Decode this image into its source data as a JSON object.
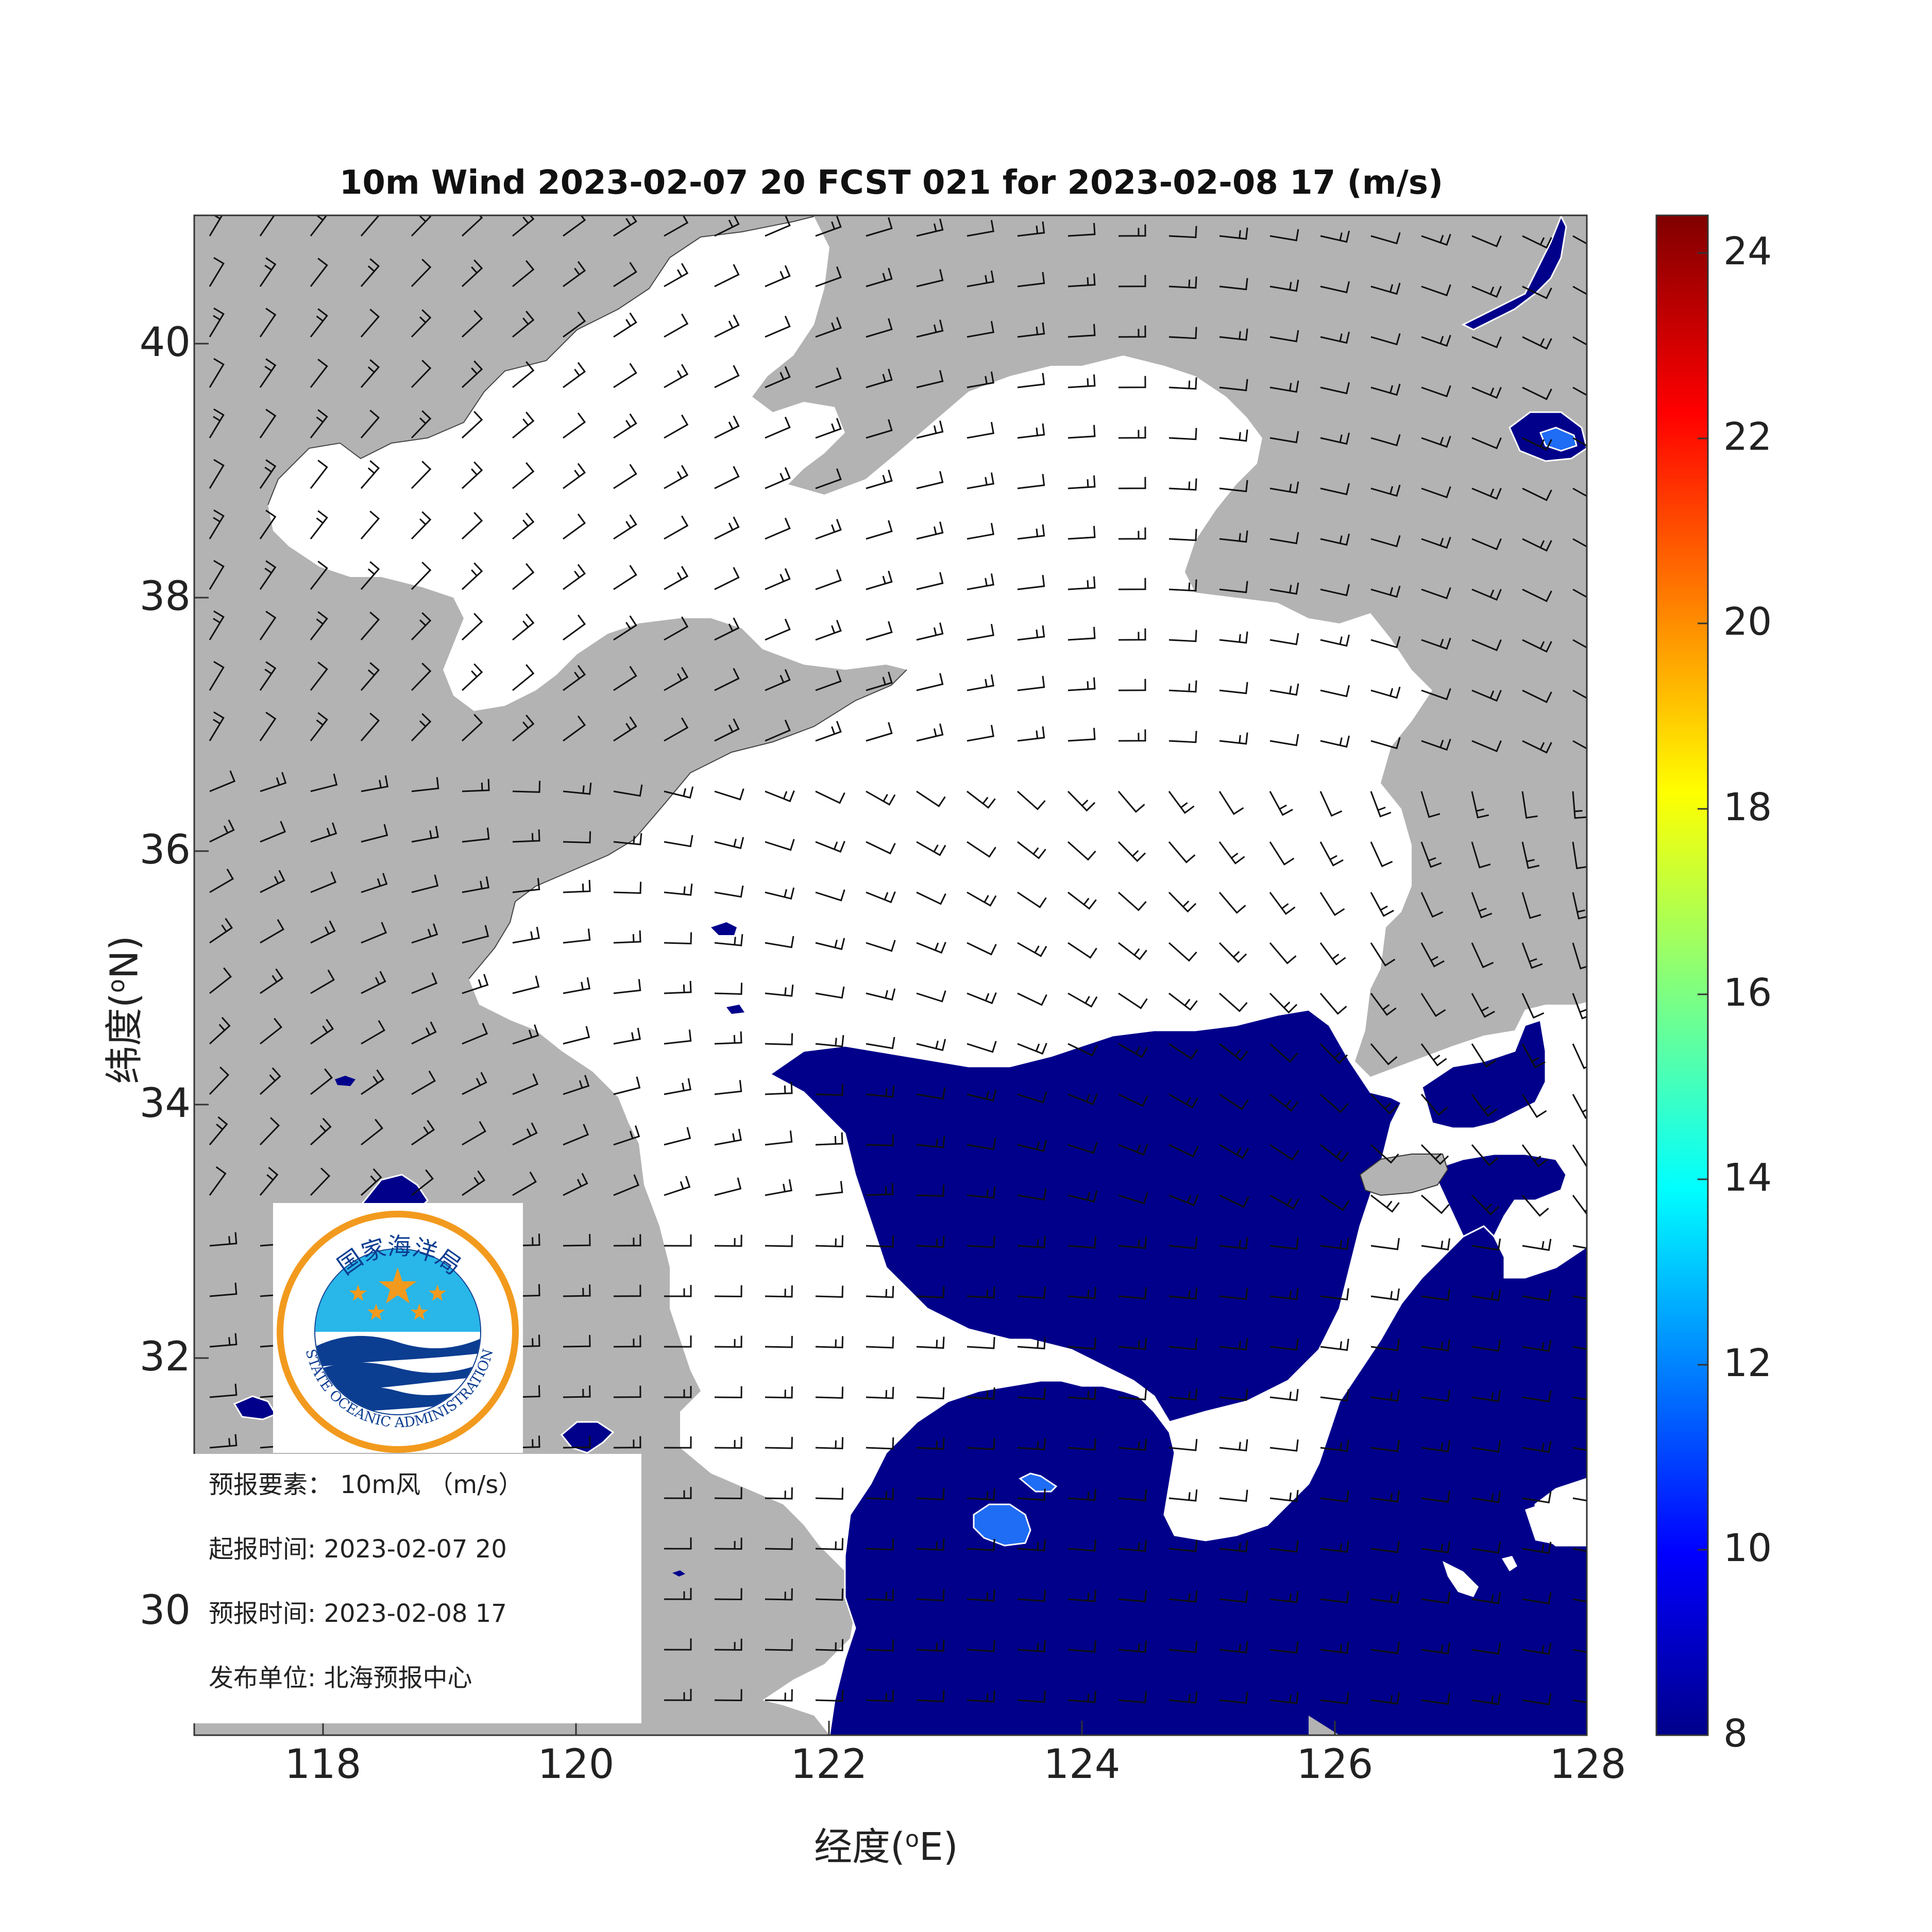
{
  "title": "10m Wind 2023-02-07 20 FCST 021 for 2023-02-08 17 (m/s)",
  "axes": {
    "xlabel_prefix": "经度(",
    "xlabel_sup": "o",
    "xlabel_suffix": "E)",
    "ylabel_prefix": "纬度(",
    "ylabel_sup": "o",
    "ylabel_suffix": "N)",
    "xticks": [
      "118",
      "120",
      "122",
      "124",
      "126",
      "128"
    ],
    "yticks": [
      "40",
      "38",
      "36",
      "34",
      "32",
      "30"
    ],
    "lon_range": [
      117,
      128
    ],
    "lat_range": [
      29,
      41
    ]
  },
  "colorbar": {
    "ticks": [
      "24",
      "22",
      "20",
      "18",
      "16",
      "14",
      "12",
      "10",
      "8"
    ],
    "range": [
      8,
      24.4
    ],
    "colormap": "jet"
  },
  "logo": {
    "top_text": "国家海洋局",
    "bottom_text": "STATE OCEANIC ADMINISTRATION",
    "ring_color": "#f29a1e",
    "sky_color": "#29b6e8",
    "wave_color": "#0b3d91",
    "star_color": "#f29a1e"
  },
  "info": {
    "element_label": "预报要素：",
    "element_value": "10m风 （m/s）",
    "start_label": "起报时间:",
    "start_value": "2023-02-07 20",
    "valid_label": "预报时间:",
    "valid_value": "2023-02-08 17",
    "issuer_label": "发布单位:",
    "issuer_value": "北海预报中心"
  },
  "colors": {
    "land": "#b3b3b3",
    "sea_low": "#ffffff",
    "wind_8": "#00008b",
    "wind_10": "#1f6cf5",
    "barb": "#111111"
  }
}
